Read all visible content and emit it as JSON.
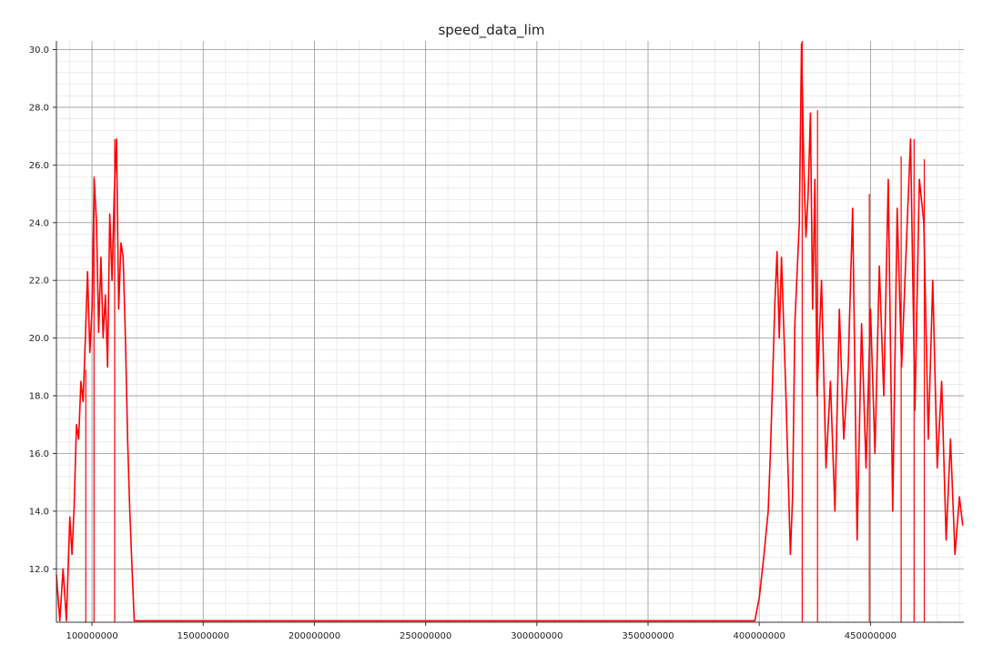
{
  "chart_data": {
    "type": "line",
    "title": "speed_data_lim",
    "xlabel": "",
    "ylabel": "",
    "xlim": [
      84000000,
      492000000
    ],
    "ylim": [
      10.15,
      30.3
    ],
    "x_major_ticks": [
      100000000,
      150000000,
      200000000,
      250000000,
      300000000,
      350000000,
      400000000,
      450000000
    ],
    "x_tick_labels": [
      "100000000",
      "150000000",
      "200000000",
      "250000000",
      "300000000",
      "350000000",
      "400000000",
      "450000000"
    ],
    "y_major_ticks": [
      12,
      14,
      16,
      18,
      20,
      22,
      24,
      26,
      28,
      30
    ],
    "y_tick_labels": [
      "12.0",
      "14.0",
      "16.0",
      "18.0",
      "20.0",
      "22.0",
      "24.0",
      "26.0",
      "28.0",
      "30.0"
    ],
    "x_minor_step": 10000000,
    "y_minor_step": 0.4,
    "grid": true,
    "legend": "none",
    "series": [
      {
        "color": "#ff0000",
        "x": [
          84000000,
          85500000,
          87000000,
          88500000,
          90000000,
          91000000,
          92000000,
          93000000,
          94000000,
          95000000,
          96000000,
          97000000,
          98000000,
          99000000,
          100000000,
          101000000,
          102000000,
          103000000,
          104000000,
          105000000,
          106000000,
          107000000,
          108000000,
          109000000,
          110000000,
          111000000,
          112000000,
          113000000,
          114000000,
          115000000,
          116000000,
          117000000,
          118000000,
          119000000,
          120000000,
          200000000,
          300000000,
          398000000,
          400000000,
          402000000,
          404000000,
          405000000,
          406000000,
          407000000,
          408000000,
          409000000,
          410000000,
          412000000,
          414000000,
          415000000,
          416000000,
          418000000,
          419000000,
          420000000,
          421000000,
          422000000,
          423000000,
          424000000,
          425000000,
          426000000,
          428000000,
          430000000,
          432000000,
          434000000,
          436000000,
          438000000,
          440000000,
          442000000,
          444000000,
          446000000,
          448000000,
          450000000,
          452000000,
          454000000,
          456000000,
          458000000,
          460000000,
          462000000,
          464000000,
          466000000,
          468000000,
          470000000,
          472000000,
          474000000,
          476000000,
          478000000,
          480000000,
          482000000,
          484000000,
          486000000,
          488000000,
          490000000,
          491500000
        ],
        "y": [
          11.8,
          10.2,
          12.0,
          10.2,
          13.8,
          12.5,
          14.2,
          17.0,
          16.5,
          18.5,
          17.8,
          20.0,
          22.3,
          19.5,
          21.0,
          25.5,
          24.0,
          20.2,
          22.8,
          20.0,
          21.5,
          19.0,
          24.3,
          22.0,
          25.0,
          26.9,
          21.0,
          23.3,
          22.8,
          20.0,
          16.5,
          14.0,
          12.0,
          10.2,
          10.2,
          10.2,
          10.2,
          10.2,
          11.0,
          12.4,
          14.0,
          16.0,
          18.5,
          21.2,
          23.0,
          20.0,
          22.8,
          18.0,
          12.5,
          14.5,
          20.5,
          24.0,
          30.2,
          26.0,
          23.5,
          25.0,
          27.8,
          21.0,
          25.5,
          18.0,
          22.0,
          15.5,
          18.5,
          14.0,
          21.0,
          16.5,
          19.0,
          24.5,
          13.0,
          20.5,
          15.5,
          21.0,
          16.0,
          22.5,
          18.0,
          25.5,
          14.0,
          24.5,
          19.0,
          23.0,
          26.9,
          17.5,
          25.5,
          24.0,
          16.5,
          22.0,
          15.5,
          18.5,
          13.0,
          16.5,
          12.5,
          14.5,
          13.5
        ],
        "spikes": [
          {
            "x": 97200000,
            "y": 18.9
          },
          {
            "x": 100900000,
            "y": 25.6
          },
          {
            "x": 110200000,
            "y": 26.9
          },
          {
            "x": 419300000,
            "y": 30.3
          },
          {
            "x": 426200000,
            "y": 27.9
          },
          {
            "x": 449500000,
            "y": 25.0
          },
          {
            "x": 463800000,
            "y": 26.3
          },
          {
            "x": 469600000,
            "y": 26.9
          },
          {
            "x": 474200000,
            "y": 26.2
          }
        ]
      }
    ]
  }
}
